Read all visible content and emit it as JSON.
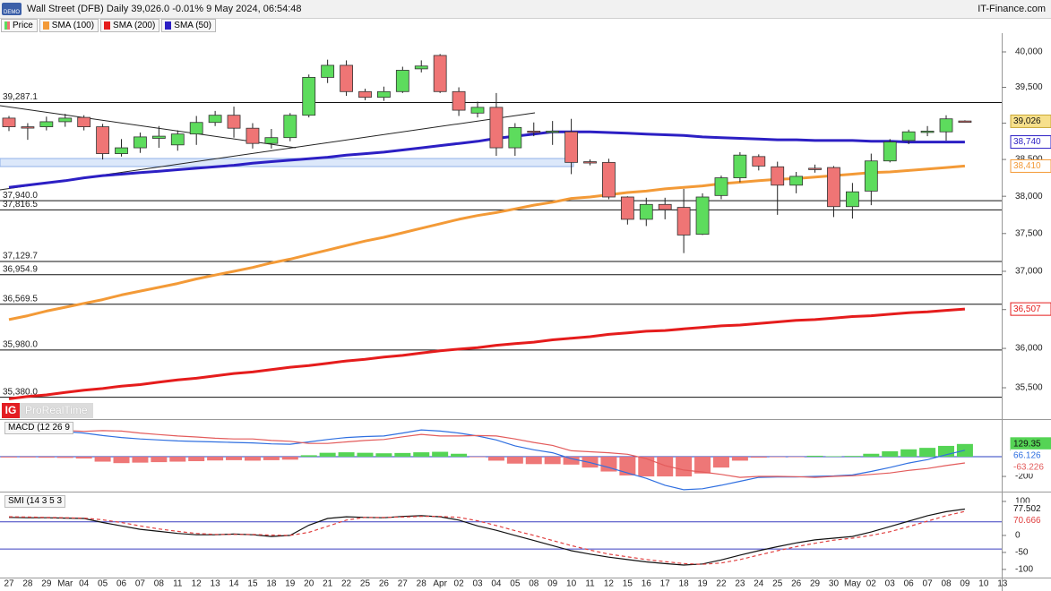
{
  "header": {
    "badge": "DEMO",
    "site": "IT-Finance.com",
    "brand_logo": "IG",
    "brand": "ProRealTime"
  },
  "chart_data": [
    {
      "type": "candlestick",
      "title": "Wall Street (DFB) Daily 39,026.0 -0.01% 9 May 2024, 06:54:48",
      "categories": [
        "27",
        "28",
        "29",
        "Mar",
        "04",
        "05",
        "06",
        "07",
        "08",
        "11",
        "12",
        "13",
        "14",
        "15",
        "18",
        "19",
        "20",
        "21",
        "22",
        "25",
        "26",
        "27",
        "28",
        "Apr",
        "02",
        "03",
        "04",
        "05",
        "08",
        "09",
        "10",
        "11",
        "12",
        "15",
        "16",
        "17",
        "18",
        "19",
        "22",
        "23",
        "24",
        "25",
        "26",
        "29",
        "30",
        "May",
        "02",
        "03",
        "06",
        "07",
        "08",
        "09",
        "10",
        "13"
      ],
      "price": {
        "name": "Price",
        "up_color": "#5ddc5d",
        "down_color": "#ef7575",
        "open": [
          39070,
          38950,
          38950,
          39020,
          39080,
          38950,
          38580,
          38660,
          38790,
          38700,
          38850,
          39010,
          39110,
          38930,
          38720,
          38800,
          39110,
          39640,
          39810,
          39440,
          39360,
          39440,
          39760,
          39950,
          39440,
          39140,
          39220,
          38660,
          38890,
          38880,
          38880,
          38470,
          38460,
          37990,
          37690,
          37890,
          37850,
          37490,
          38010,
          38250,
          38540,
          38400,
          38150,
          38380,
          38390,
          37860,
          38070,
          38480,
          38760,
          38880,
          38880,
          39030,
          null,
          null
        ],
        "high": [
          39100,
          39000,
          39090,
          39130,
          39110,
          38990,
          38780,
          38870,
          38960,
          38900,
          39100,
          39170,
          39230,
          39000,
          38920,
          39140,
          39680,
          39890,
          39880,
          39480,
          39510,
          39790,
          39880,
          39970,
          39500,
          39300,
          39420,
          39000,
          39010,
          39030,
          39060,
          38500,
          38510,
          38000,
          37980,
          37980,
          38100,
          38040,
          38280,
          38600,
          38570,
          38470,
          38330,
          38430,
          38410,
          38180,
          38580,
          38780,
          38910,
          38960,
          39110,
          39040,
          null,
          null
        ],
        "low": [
          38890,
          38770,
          38900,
          38950,
          38900,
          38500,
          38540,
          38590,
          38660,
          38620,
          38700,
          38960,
          38800,
          38650,
          38650,
          38750,
          39080,
          39560,
          39380,
          39320,
          39310,
          39420,
          39710,
          39420,
          39100,
          39080,
          38550,
          38550,
          38820,
          38700,
          38300,
          38420,
          37960,
          37620,
          37600,
          37690,
          37240,
          37480,
          37960,
          38190,
          38350,
          37750,
          38040,
          38320,
          37720,
          37700,
          37880,
          38460,
          38710,
          38820,
          38760,
          39010,
          null,
          null
        ],
        "close": [
          38950,
          38940,
          39020,
          39070,
          38950,
          38580,
          38660,
          38810,
          38820,
          38850,
          39010,
          39110,
          38930,
          38720,
          38800,
          39110,
          39640,
          39810,
          39440,
          39360,
          39440,
          39740,
          39800,
          39440,
          39180,
          39220,
          38660,
          38940,
          38880,
          38890,
          38460,
          38460,
          37990,
          37690,
          37890,
          37820,
          37480,
          37990,
          38250,
          38560,
          38410,
          38150,
          38270,
          38370,
          37860,
          38060,
          38480,
          38740,
          38880,
          38890,
          39060,
          39026,
          null,
          null
        ],
        "value_labels": [
          null,
          null,
          null,
          null,
          null,
          null,
          null,
          null,
          null,
          null,
          null,
          null,
          null,
          null,
          null,
          null,
          null,
          null,
          null,
          null,
          null,
          null,
          null,
          null,
          null,
          null,
          null,
          null,
          null,
          null,
          null,
          null,
          null,
          null,
          null,
          null,
          null,
          null,
          null,
          null,
          null,
          null,
          null,
          null,
          null,
          null,
          null,
          null,
          null,
          null,
          null,
          "39,026",
          null,
          null
        ]
      },
      "series": [
        {
          "name": "SMA (100)",
          "color": "#f39a37",
          "values": [
            36370,
            36420,
            36480,
            36530,
            36580,
            36630,
            36690,
            36740,
            36790,
            36840,
            36900,
            36950,
            37000,
            37050,
            37110,
            37160,
            37220,
            37280,
            37340,
            37400,
            37450,
            37510,
            37570,
            37630,
            37690,
            37740,
            37780,
            37830,
            37880,
            37920,
            37970,
            37990,
            38020,
            38050,
            38070,
            38100,
            38120,
            38140,
            38170,
            38190,
            38210,
            38230,
            38240,
            38260,
            38280,
            38300,
            38320,
            38330,
            38350,
            38370,
            38390,
            38410,
            null,
            null
          ],
          "value_labels": [
            null,
            null,
            null,
            null,
            null,
            null,
            null,
            null,
            null,
            null,
            null,
            null,
            null,
            null,
            null,
            null,
            null,
            null,
            null,
            null,
            null,
            null,
            null,
            null,
            null,
            null,
            null,
            null,
            null,
            null,
            null,
            null,
            null,
            null,
            null,
            null,
            null,
            null,
            null,
            null,
            null,
            null,
            null,
            null,
            null,
            null,
            null,
            null,
            null,
            null,
            null,
            "38,410",
            null,
            null
          ]
        },
        {
          "name": "SMA (200)",
          "color": "#e51c1c",
          "values": [
            35360,
            35390,
            35410,
            35440,
            35470,
            35490,
            35520,
            35540,
            35570,
            35600,
            35620,
            35650,
            35680,
            35700,
            35730,
            35760,
            35780,
            35810,
            35840,
            35860,
            35890,
            35910,
            35940,
            35970,
            35990,
            36010,
            36040,
            36060,
            36080,
            36110,
            36130,
            36150,
            36180,
            36200,
            36220,
            36230,
            36250,
            36270,
            36290,
            36300,
            36320,
            36340,
            36360,
            36370,
            36390,
            36410,
            36420,
            36440,
            36460,
            36470,
            36490,
            36507,
            null,
            null
          ],
          "value_labels": [
            null,
            null,
            null,
            null,
            null,
            null,
            null,
            null,
            null,
            null,
            null,
            null,
            null,
            null,
            null,
            null,
            null,
            null,
            null,
            null,
            null,
            null,
            null,
            null,
            null,
            null,
            null,
            null,
            null,
            null,
            null,
            null,
            null,
            null,
            null,
            null,
            null,
            null,
            null,
            null,
            null,
            null,
            null,
            null,
            null,
            null,
            null,
            null,
            null,
            null,
            null,
            "36,507",
            null,
            null
          ]
        },
        {
          "name": "SMA (50)",
          "color": "#2c1fc4",
          "values": [
            38120,
            38150,
            38180,
            38210,
            38250,
            38280,
            38300,
            38320,
            38340,
            38360,
            38380,
            38400,
            38420,
            38450,
            38470,
            38490,
            38510,
            38530,
            38560,
            38580,
            38600,
            38630,
            38660,
            38690,
            38720,
            38750,
            38790,
            38820,
            38850,
            38880,
            38880,
            38880,
            38870,
            38860,
            38850,
            38840,
            38830,
            38810,
            38800,
            38790,
            38780,
            38770,
            38770,
            38760,
            38760,
            38760,
            38750,
            38750,
            38740,
            38740,
            38740,
            38740,
            null,
            null
          ],
          "value_labels": [
            null,
            null,
            null,
            null,
            null,
            null,
            null,
            null,
            null,
            null,
            null,
            null,
            null,
            null,
            null,
            null,
            null,
            null,
            null,
            null,
            null,
            null,
            null,
            null,
            null,
            null,
            null,
            null,
            null,
            null,
            null,
            null,
            null,
            null,
            null,
            null,
            null,
            null,
            null,
            null,
            null,
            null,
            null,
            null,
            null,
            null,
            null,
            null,
            null,
            null,
            null,
            "38,740",
            null,
            null
          ]
        }
      ],
      "levels": [
        {
          "value": 39287.1,
          "label": "39,287.1"
        },
        {
          "value": 37940.0,
          "label": "37,940.0"
        },
        {
          "value": 37816.5,
          "label": "37,816.5"
        },
        {
          "value": 37129.7,
          "label": "37,129.7"
        },
        {
          "value": 36954.9,
          "label": "36,954.9"
        },
        {
          "value": 36569.5,
          "label": "36,569.5"
        },
        {
          "value": 35980.0,
          "label": "35,980.0"
        },
        {
          "value": 35380.0,
          "label": "35,380.0"
        }
      ],
      "log": true,
      "ylim": [
        35107,
        40268
      ],
      "yticks": [
        {
          "value": 35500,
          "label": "35,500"
        },
        {
          "value": 36000,
          "label": "36,000"
        },
        {
          "value": 36500,
          "label": "36,500"
        },
        {
          "value": 37000,
          "label": "37,000"
        },
        {
          "value": 37500,
          "label": "37,500"
        },
        {
          "value": 38000,
          "label": "38,000"
        },
        {
          "value": 38500,
          "label": "38,500"
        },
        {
          "value": 39000,
          "label": "39,000"
        },
        {
          "value": 39500,
          "label": "39,500"
        },
        {
          "value": 40000,
          "label": "40,000"
        }
      ]
    },
    {
      "type": "macd",
      "title": "MACD (12 26 9",
      "series": [
        {
          "type": "bar",
          "color": "#55d455",
          "negative_color": "#ee7777",
          "values": [
            -8,
            -8,
            -10,
            -12,
            -18,
            -50,
            -65,
            -60,
            -55,
            -50,
            -45,
            -38,
            -35,
            -40,
            -35,
            -30,
            15,
            40,
            45,
            40,
            35,
            38,
            45,
            50,
            30,
            -5,
            -40,
            -70,
            -75,
            -75,
            -80,
            -110,
            -150,
            -190,
            -200,
            -200,
            -200,
            -170,
            -110,
            -40,
            -10,
            -5,
            -3,
            10,
            5,
            8,
            30,
            55,
            75,
            90,
            110,
            129.35,
            null,
            null
          ]
        },
        {
          "type": "line",
          "color": "#2f6fe0",
          "values": [
            290,
            280,
            270,
            255,
            240,
            215,
            195,
            180,
            170,
            160,
            155,
            150,
            145,
            140,
            130,
            127,
            150,
            175,
            195,
            205,
            210,
            240,
            272,
            260,
            240,
            210,
            170,
            110,
            70,
            40,
            -20,
            -60,
            -110,
            -165,
            -220,
            -290,
            -335,
            -325,
            -290,
            -250,
            -210,
            -205,
            -205,
            -200,
            -195,
            -185,
            -150,
            -110,
            -64,
            -30,
            20,
            66.126,
            null,
            null
          ]
        },
        {
          "type": "line",
          "color": "#e35b5b",
          "values": [
            298,
            288,
            280,
            267,
            258,
            265,
            260,
            240,
            225,
            210,
            200,
            188,
            180,
            180,
            165,
            157,
            135,
            135,
            150,
            165,
            175,
            202,
            227,
            210,
            210,
            215,
            210,
            180,
            145,
            115,
            60,
            50,
            40,
            25,
            -20,
            -90,
            -135,
            -155,
            -180,
            -210,
            -200,
            -200,
            -202,
            -210,
            -200,
            -193,
            -180,
            -165,
            -139,
            -120,
            -90,
            -63.226,
            null,
            null
          ]
        }
      ],
      "levels": [
        0
      ],
      "level_color": "#2a3fc0",
      "ylim": [
        -345,
        364
      ],
      "yticks": [
        -200
      ]
    },
    {
      "type": "smi",
      "title": "SMI (14 3 5 3",
      "series": [
        {
          "type": "line",
          "color": "#111111",
          "values": [
            53,
            52,
            52,
            51,
            50,
            38,
            28,
            18,
            12,
            6,
            2,
            2,
            4,
            2,
            -3,
            0,
            30,
            50,
            55,
            53,
            52,
            56,
            58,
            55,
            45,
            28,
            15,
            0,
            -15,
            -30,
            -45,
            -55,
            -64,
            -71,
            -78,
            -83,
            -87,
            -84,
            -72,
            -58,
            -45,
            -33,
            -22,
            -13,
            -8,
            -3,
            10,
            26,
            42,
            58,
            70,
            77.502,
            null,
            null
          ]
        },
        {
          "type": "line",
          "color": "#e04040",
          "dash": true,
          "values": [
            55,
            54,
            53,
            52,
            51,
            46,
            38,
            28,
            19,
            12,
            6,
            3,
            3,
            3,
            1,
            0,
            9,
            27,
            45,
            53,
            53,
            54,
            56,
            56,
            53,
            43,
            29,
            14,
            0,
            -15,
            -30,
            -43,
            -55,
            -63,
            -71,
            -77,
            -83,
            -85,
            -81,
            -71,
            -58,
            -45,
            -33,
            -23,
            -14,
            -8,
            0,
            11,
            26,
            42,
            58,
            70.666,
            null,
            null
          ]
        }
      ],
      "levels": [
        40,
        -40
      ],
      "level_color": "#3a3fc0",
      "ylim": [
        -124,
        121
      ],
      "yticks": [
        100,
        0,
        -50,
        -100
      ]
    }
  ]
}
